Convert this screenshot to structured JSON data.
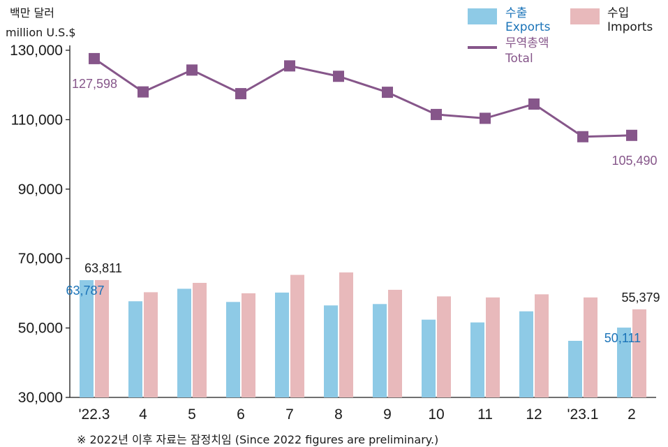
{
  "chart_data": {
    "type": "bar",
    "unit_label_ko": "백만 달러",
    "unit_label_en": "million U.S.$",
    "categories": [
      "'22.3",
      "4",
      "5",
      "6",
      "7",
      "8",
      "9",
      "10",
      "11",
      "12",
      "'23.1",
      "2"
    ],
    "series": [
      {
        "name": "수출 Exports",
        "name_ko": "수출",
        "name_en": "Exports",
        "kind": "bar",
        "color": "#8ecae6",
        "values": [
          63787,
          57700,
          61300,
          57500,
          60200,
          56500,
          56900,
          52400,
          51600,
          54800,
          46300,
          50111
        ]
      },
      {
        "name": "수입 Imports",
        "name_ko": "수입",
        "name_en": "Imports",
        "kind": "bar",
        "color": "#e8b9bb",
        "values": [
          63811,
          60300,
          63000,
          60000,
          65300,
          66000,
          61000,
          59100,
          58800,
          59700,
          58800,
          55379
        ]
      },
      {
        "name": "무역총액 Total",
        "name_ko": "무역총액",
        "name_en": "Total",
        "kind": "line",
        "color": "#86568a",
        "values": [
          127598,
          118000,
          124300,
          117500,
          125500,
          122500,
          117900,
          111500,
          110400,
          114500,
          105100,
          105490
        ]
      }
    ],
    "data_labels": [
      {
        "series": 0,
        "index": 0,
        "text": "63,787",
        "color": "#1a73b8"
      },
      {
        "series": 1,
        "index": 0,
        "text": "63,811",
        "color": "#1a1a1a"
      },
      {
        "series": 2,
        "index": 0,
        "text": "127,598",
        "color": "#86568a"
      },
      {
        "series": 0,
        "index": 11,
        "text": "50,111",
        "color": "#1a73b8"
      },
      {
        "series": 1,
        "index": 11,
        "text": "55,379",
        "color": "#1a1a1a"
      },
      {
        "series": 2,
        "index": 11,
        "text": "105,490",
        "color": "#86568a"
      }
    ],
    "ylim": [
      30000,
      131000
    ],
    "yticks": [
      30000,
      50000,
      70000,
      90000,
      110000,
      130000
    ],
    "ytick_labels": [
      "30,000",
      "50,000",
      "70,000",
      "90,000",
      "110,000",
      "130,000"
    ],
    "legend_placement": "top-right",
    "grid": false
  },
  "footnote": "※ 2022년 이후 자료는 잠정치임 (Since 2022 figures are preliminary.)"
}
